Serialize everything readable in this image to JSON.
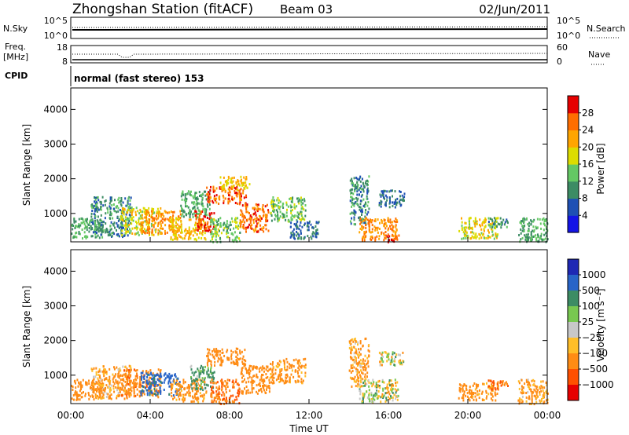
{
  "header": {
    "station": "Zhongshan Station (fitACF)",
    "beam": "Beam 03",
    "date": "02/Jun/2011"
  },
  "strip_labels": {
    "nsky": "N.Sky",
    "nsky_top": "10^5",
    "nsky_bottom": "10^0",
    "freq_line1": "Freq.",
    "freq_line2": "[MHz]",
    "freq_top": "18",
    "freq_bottom": "8",
    "nsearch": "N.Search",
    "nsearch_top": "10^5",
    "nsearch_bottom": "10^0",
    "nave": "Nave",
    "nave_top": "60",
    "nave_bottom": "0",
    "cpid": "CPID",
    "cpid_value": "normal (fast stereo) 153"
  },
  "x_axis": {
    "label": "Time UT",
    "ticks": [
      "00:00",
      "04:00",
      "08:00",
      "12:00",
      "16:00",
      "20:00",
      "00:00"
    ]
  },
  "panels": {
    "power": {
      "ylabel": "Slant Range [km]",
      "yticks": [
        "1000",
        "2000",
        "3000",
        "4000"
      ],
      "colorbar_label": "Power [dB]",
      "colorbar_ticks": [
        "4",
        "8",
        "12",
        "16",
        "20",
        "24",
        "28"
      ]
    },
    "velocity": {
      "ylabel": "Slant Range [km]",
      "yticks": [
        "1000",
        "2000",
        "3000",
        "4000"
      ],
      "colorbar_label": "Velocity [m s⁻¹]",
      "colorbar_ticks": [
        "1000",
        "500",
        "100",
        "25",
        "−25",
        "−100",
        "−500",
        "−1000"
      ]
    }
  },
  "colors": {
    "power_scale": [
      "#1414e6",
      "#1e50b4",
      "#3c8c64",
      "#64c864",
      "#dcdc00",
      "#ffa500",
      "#ff6e00",
      "#e60000"
    ],
    "velocity_scale": [
      "#1e28b4",
      "#2864c8",
      "#3c8c64",
      "#78c850",
      "#c8c8c8",
      "#ffbe28",
      "#ff8c14",
      "#ff5000",
      "#e60000"
    ]
  },
  "chart_data": [
    {
      "type": "heatmap",
      "title": "Power",
      "x_range_hours": [
        0,
        24
      ],
      "y_range_km": [
        180,
        4620
      ],
      "clusters": [
        {
          "t": [
            0.0,
            1.6
          ],
          "r": [
            300,
            900
          ],
          "v": 12
        },
        {
          "t": [
            1.0,
            3.0
          ],
          "r": [
            350,
            1500
          ],
          "v": 10
        },
        {
          "t": [
            2.5,
            4.5
          ],
          "r": [
            400,
            1200
          ],
          "v": 18
        },
        {
          "t": [
            3.5,
            5.5
          ],
          "r": [
            450,
            1100
          ],
          "v": 24
        },
        {
          "t": [
            5.0,
            6.8
          ],
          "r": [
            250,
            900
          ],
          "v": 20
        },
        {
          "t": [
            5.5,
            7.0
          ],
          "r": [
            900,
            1700
          ],
          "v": 12
        },
        {
          "t": [
            6.2,
            7.2
          ],
          "r": [
            500,
            1100
          ],
          "v": 28
        },
        {
          "t": [
            6.8,
            8.8
          ],
          "r": [
            1300,
            1800
          ],
          "v": 26
        },
        {
          "t": [
            7.0,
            8.5
          ],
          "r": [
            200,
            900
          ],
          "v": 14
        },
        {
          "t": [
            8.5,
            10.0
          ],
          "r": [
            500,
            1300
          ],
          "v": 26
        },
        {
          "t": [
            7.5,
            9.0
          ],
          "r": [
            1700,
            2100
          ],
          "v": 20
        },
        {
          "t": [
            10.0,
            11.8
          ],
          "r": [
            800,
            1500
          ],
          "v": 14
        },
        {
          "t": [
            11.0,
            12.5
          ],
          "r": [
            300,
            800
          ],
          "v": 8
        },
        {
          "t": [
            14.0,
            15.0
          ],
          "r": [
            700,
            2100
          ],
          "v": 10
        },
        {
          "t": [
            14.5,
            16.5
          ],
          "r": [
            250,
            900
          ],
          "v": 24
        },
        {
          "t": [
            15.5,
            16.8
          ],
          "r": [
            1200,
            1700
          ],
          "v": 8
        },
        {
          "t": [
            15.8,
            16.4
          ],
          "r": [
            200,
            400
          ],
          "v": 28
        },
        {
          "t": [
            19.5,
            21.5
          ],
          "r": [
            300,
            900
          ],
          "v": 18
        },
        {
          "t": [
            21.0,
            22.0
          ],
          "r": [
            600,
            900
          ],
          "v": 10
        },
        {
          "t": [
            22.5,
            24.0
          ],
          "r": [
            200,
            900
          ],
          "v": 12
        }
      ]
    },
    {
      "type": "heatmap",
      "title": "Velocity",
      "x_range_hours": [
        0,
        24
      ],
      "y_range_km": [
        180,
        4620
      ],
      "clusters": [
        {
          "t": [
            0.0,
            1.6
          ],
          "r": [
            300,
            900
          ],
          "v": -300
        },
        {
          "t": [
            1.0,
            3.0
          ],
          "r": [
            350,
            1300
          ],
          "v": -150
        },
        {
          "t": [
            2.5,
            4.5
          ],
          "r": [
            400,
            1200
          ],
          "v": -400
        },
        {
          "t": [
            3.5,
            5.5
          ],
          "r": [
            450,
            1100
          ],
          "v": 600
        },
        {
          "t": [
            5.0,
            6.8
          ],
          "r": [
            250,
            900
          ],
          "v": -200
        },
        {
          "t": [
            6.0,
            7.2
          ],
          "r": [
            600,
            1300
          ],
          "v": 150
        },
        {
          "t": [
            6.8,
            8.8
          ],
          "r": [
            1300,
            1800
          ],
          "v": -250
        },
        {
          "t": [
            7.0,
            8.5
          ],
          "r": [
            200,
            900
          ],
          "v": -500
        },
        {
          "t": [
            8.5,
            10.0
          ],
          "r": [
            500,
            1300
          ],
          "v": -300
        },
        {
          "t": [
            10.0,
            11.8
          ],
          "r": [
            800,
            1500
          ],
          "v": -200
        },
        {
          "t": [
            14.0,
            15.0
          ],
          "r": [
            700,
            2100
          ],
          "v": -150
        },
        {
          "t": [
            14.5,
            16.5
          ],
          "r": [
            250,
            900
          ],
          "v": 0
        },
        {
          "t": [
            15.5,
            16.8
          ],
          "r": [
            1300,
            1700
          ],
          "v": 10
        },
        {
          "t": [
            19.5,
            21.5
          ],
          "r": [
            300,
            800
          ],
          "v": -200
        },
        {
          "t": [
            21.0,
            22.0
          ],
          "r": [
            600,
            900
          ],
          "v": -500
        },
        {
          "t": [
            22.5,
            24.0
          ],
          "r": [
            200,
            900
          ],
          "v": -150
        }
      ]
    }
  ]
}
